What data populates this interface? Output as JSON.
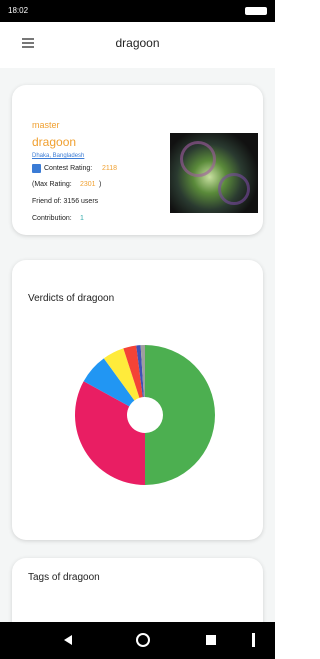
{
  "status_bar": {
    "time": "18:02"
  },
  "header": {
    "title": "dragoon"
  },
  "profile": {
    "rank": "master",
    "handle": "dragoon",
    "location": "Dhaka, Bangladesh",
    "contest_rating_label": "Contest Rating:",
    "contest_rating": "2118",
    "max_rating_prefix": "(Max Rating:",
    "max_rating": "2301",
    "max_rating_suffix": ")",
    "friends": "Friend of: 3156 users",
    "contribution_label": "Contribution:",
    "contribution": "1"
  },
  "chart_data": {
    "type": "pie",
    "title": "Verdicts of dragoon",
    "donut": true,
    "values": [
      50,
      33,
      7,
      5,
      3,
      1,
      1
    ],
    "colors": [
      "#4caf50",
      "#e91e63",
      "#2196f3",
      "#ffeb3b",
      "#f44336",
      "#3f51b5",
      "#9e9e9e"
    ]
  },
  "tags_card": {
    "title": "Tags of dragoon"
  }
}
